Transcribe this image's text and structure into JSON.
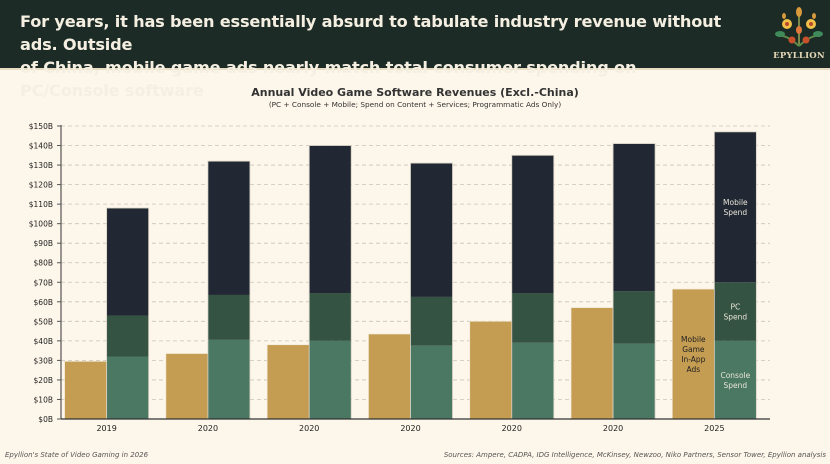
{
  "header": {
    "headline_line1": "For years, it has been essentially absurd to tabulate industry revenue without ads. Outside",
    "headline_line2": "of China, mobile game ads nearly match total consumer spending on PC/Console software",
    "logo_text": "EPYLLION",
    "logo_icon": "floral-ornament-icon"
  },
  "footer": {
    "left": "Epyllion's State of Video Gaming in 2026",
    "right": "Sources: Ampere, CADPA, IDG Intelligence, McKinsey, Newzoo, Niko Partners, Sensor Tower, Epyllion analysis"
  },
  "colors": {
    "header_bg": "#1c2b25",
    "background": "#fdf6ea",
    "ads": "#c59d52",
    "console": "#4a7862",
    "pc": "#355343",
    "mobile": "#212833"
  },
  "chart_data": {
    "type": "bar",
    "title": "Annual Video Game Software Revenues (Excl.-China)",
    "subtitle": "(PC + Console + Mobile; Spend on Content + Services; Programmatic Ads Only)",
    "xlabel": "",
    "ylabel": "",
    "ylim": [
      0,
      150
    ],
    "yticks": [
      0,
      10,
      20,
      30,
      40,
      50,
      60,
      70,
      80,
      90,
      100,
      110,
      120,
      130,
      140,
      150
    ],
    "ytick_labels": [
      "$0B",
      "$10B",
      "$20B",
      "$30B",
      "$40B",
      "$50B",
      "$60B",
      "$70B",
      "$80B",
      "$90B",
      "$100B",
      "$110B",
      "$120B",
      "$130B",
      "$140B",
      "$150B"
    ],
    "grid": true,
    "categories": [
      "2019",
      "2020",
      "2020",
      "2020",
      "2020",
      "2020",
      "2025"
    ],
    "series": [
      {
        "name": "Mobile Game In-App Ads",
        "label_lines": [
          "Mobile",
          "Game",
          "In-App",
          "Ads"
        ],
        "stack": "ads",
        "color": "#c59d52",
        "values": [
          29.5,
          33.5,
          38,
          43.5,
          50,
          57,
          66.5
        ]
      },
      {
        "name": "Console Spend",
        "label_lines": [
          "Console",
          "Spend"
        ],
        "stack": "spend",
        "color": "#4a7862",
        "values": [
          32,
          40.5,
          40,
          37.5,
          39,
          38.5,
          40
        ]
      },
      {
        "name": "PC Spend",
        "label_lines": [
          "PC",
          "Spend"
        ],
        "stack": "spend",
        "color": "#355343",
        "values": [
          21,
          23,
          24.5,
          25,
          25.5,
          27,
          30
        ]
      },
      {
        "name": "Mobile Spend",
        "label_lines": [
          "Mobile",
          "Spend"
        ],
        "stack": "spend",
        "color": "#212833",
        "values": [
          55,
          68.5,
          75.5,
          68.5,
          70.5,
          75.5,
          77
        ]
      }
    ],
    "legend": "inline-labels-on-last-group"
  }
}
